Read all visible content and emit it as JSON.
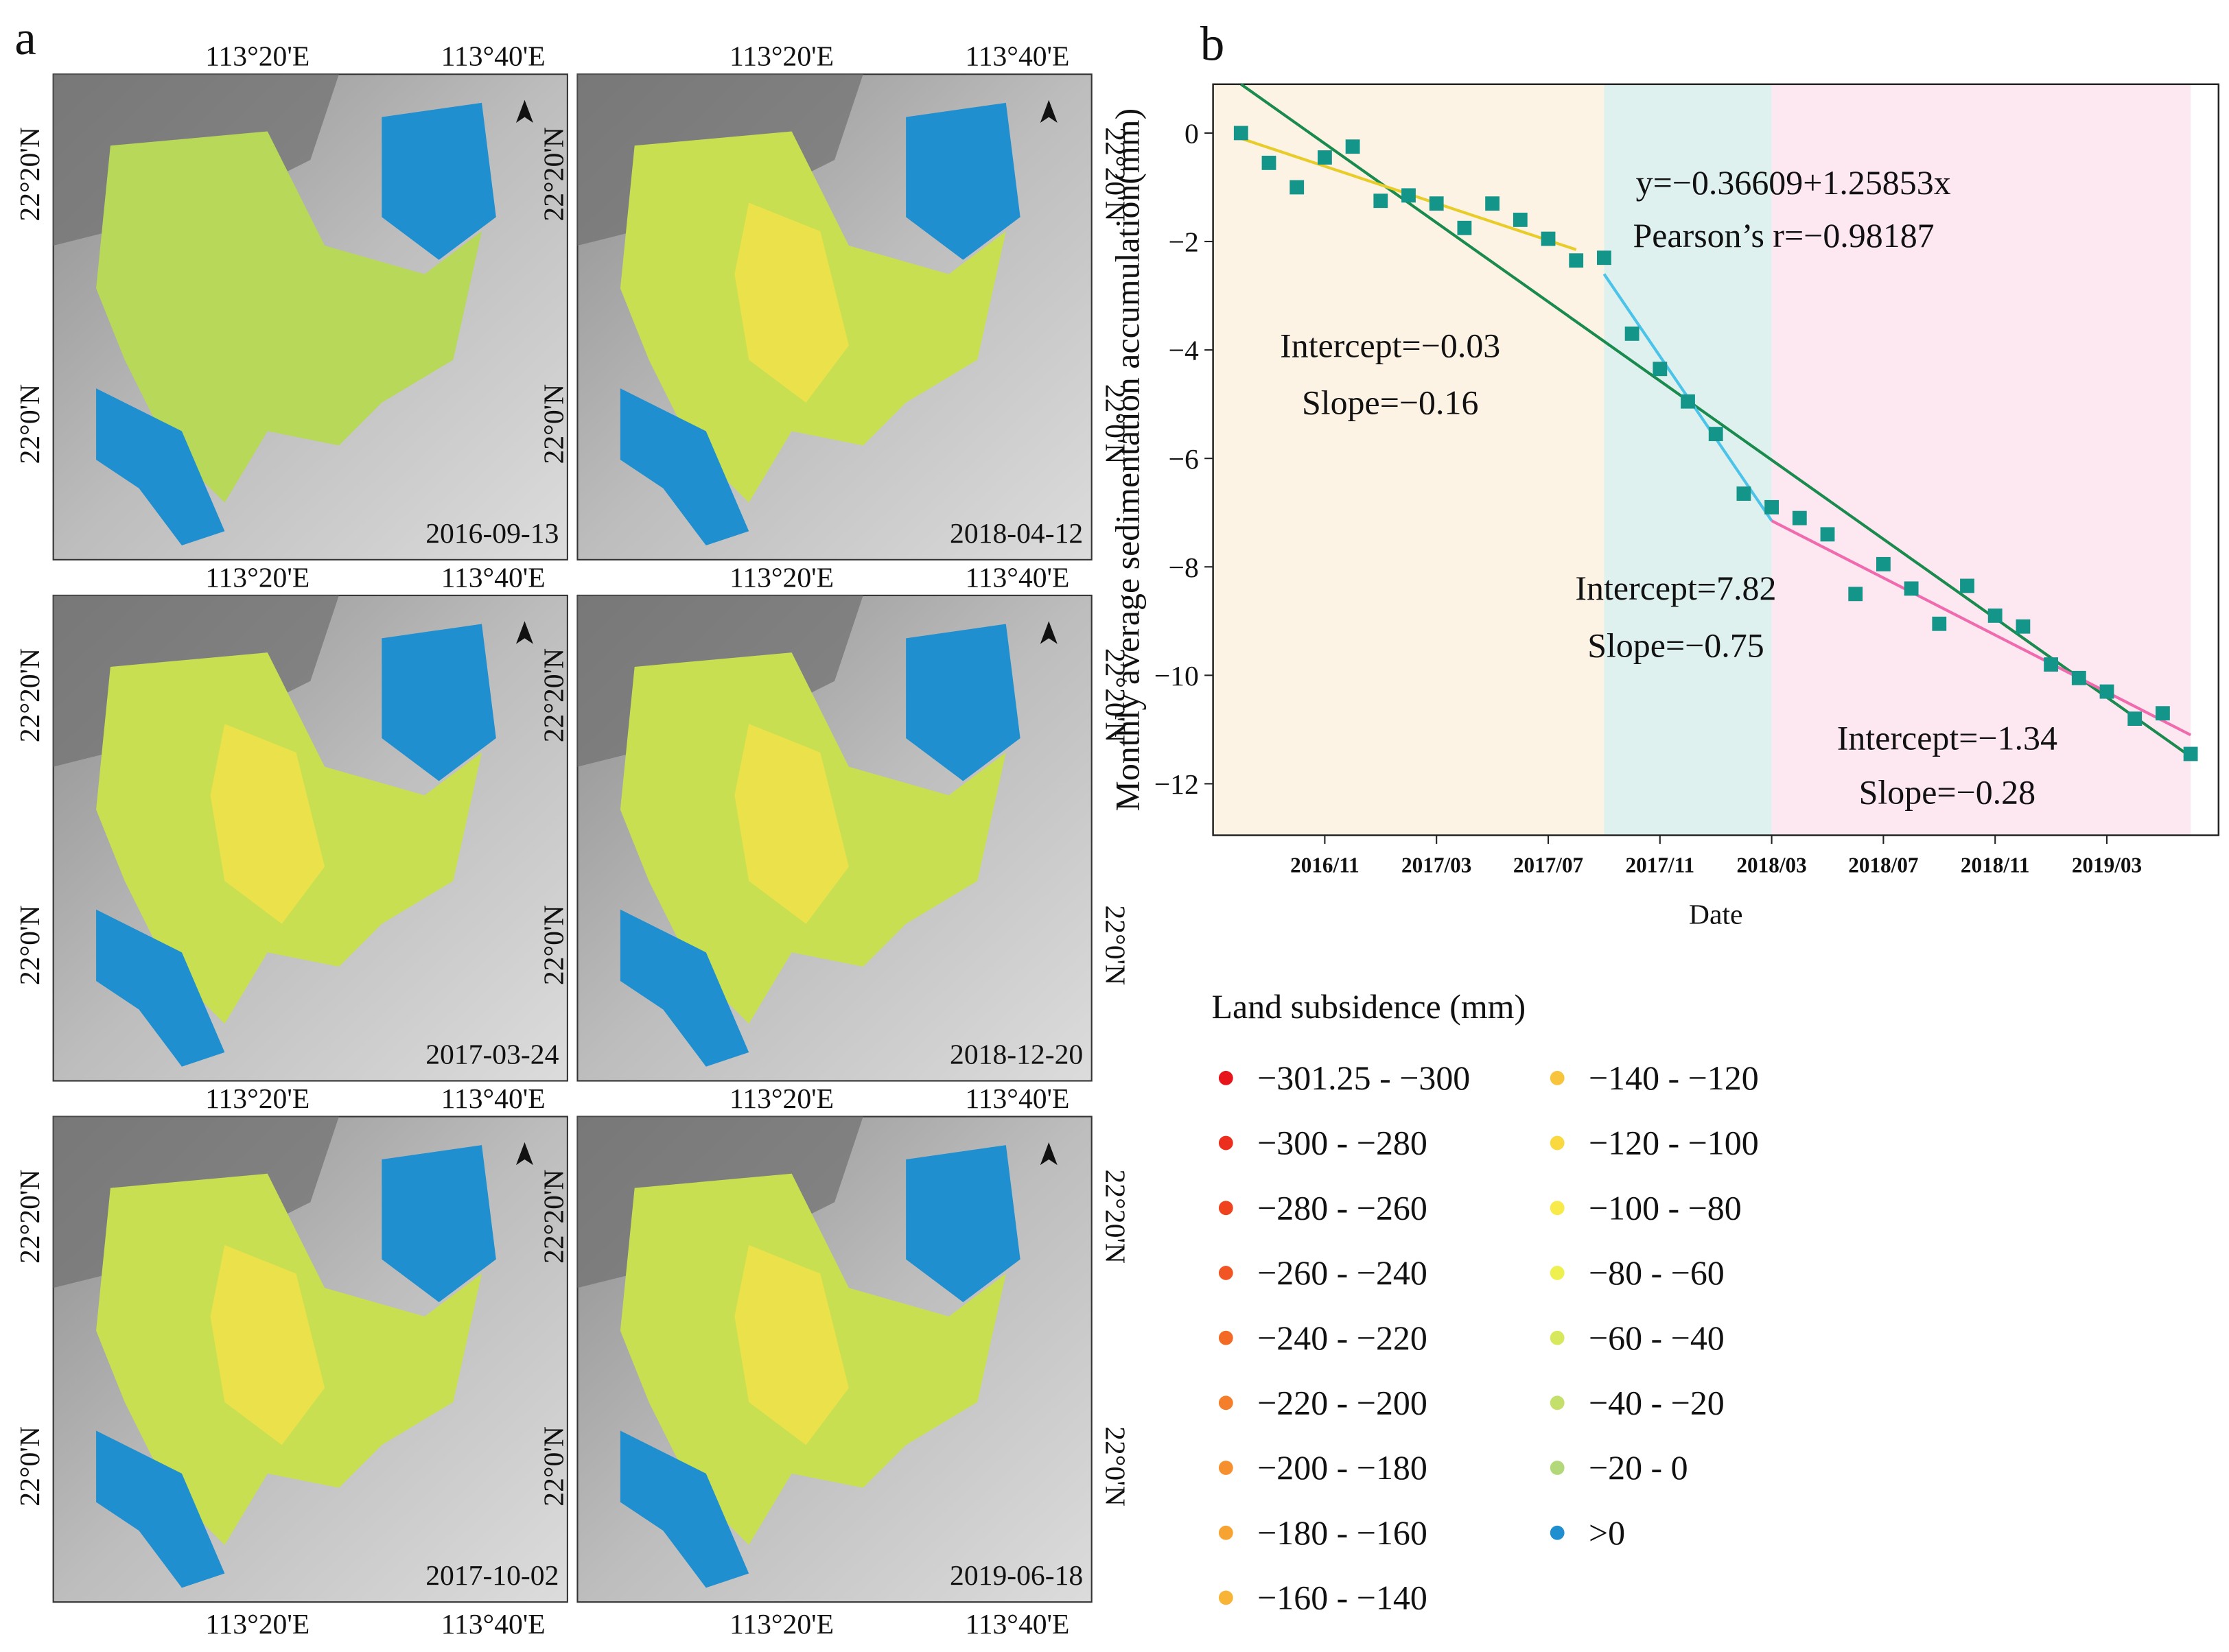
{
  "panel_labels": [
    "a",
    "b"
  ],
  "maps": {
    "lon_labels": [
      "113°20'E",
      "113°40'E"
    ],
    "lat_labels": [
      "22°20'N",
      "22°0'N"
    ],
    "panels": [
      {
        "date": "2016-09-13"
      },
      {
        "date": "2018-04-12"
      },
      {
        "date": "2017-03-24"
      },
      {
        "date": "2018-12-20"
      },
      {
        "date": "2017-10-02"
      },
      {
        "date": "2019-06-18"
      }
    ]
  },
  "chart_data": {
    "type": "scatter",
    "x_label": "Date",
    "y_label": "Monthly average sedimentation accumulation(mm)",
    "x": [
      "2016/08",
      "2016/09",
      "2016/10",
      "2016/11",
      "2016/12",
      "2017/01",
      "2017/02",
      "2017/03",
      "2017/04",
      "2017/05",
      "2017/06",
      "2017/07",
      "2017/08",
      "2017/09",
      "2017/10",
      "2017/11",
      "2017/12",
      "2018/01",
      "2018/02",
      "2018/03",
      "2018/04",
      "2018/05",
      "2018/06",
      "2018/07",
      "2018/08",
      "2018/09",
      "2018/10",
      "2018/11",
      "2018/12",
      "2019/01",
      "2019/02",
      "2019/03",
      "2019/04",
      "2019/05",
      "2019/06"
    ],
    "series": [
      {
        "color": "#14958a",
        "values": [
          0,
          -0.55,
          -1.0,
          -0.45,
          -0.25,
          -1.25,
          -1.15,
          -1.3,
          -1.75,
          -1.3,
          -1.6,
          -1.95,
          -2.35,
          -2.3,
          -3.7,
          -4.35,
          -4.95,
          -5.55,
          -6.65,
          -6.9,
          -7.1,
          -7.4,
          -8.5,
          -7.95,
          -8.4,
          -9.05,
          -8.35,
          -8.9,
          -9.1,
          -9.8,
          -10.05,
          -10.3,
          -10.8,
          -10.7,
          -11.45
        ]
      }
    ],
    "xlim": [
      "2016/07",
      "2019/07"
    ],
    "xticks": [
      "2016/11",
      "2017/03",
      "2017/07",
      "2017/11",
      "2018/03",
      "2018/07",
      "2018/11",
      "2019/03"
    ],
    "ylim": [
      -12.95,
      0.9
    ],
    "yticks": [
      0,
      {
        "value": -2,
        "label": "−2"
      },
      {
        "value": -4,
        "label": "−4"
      },
      {
        "value": -6,
        "label": "−6"
      },
      {
        "value": -8,
        "label": "−8"
      },
      {
        "value": -10,
        "label": "−10"
      },
      {
        "value": -12,
        "label": "−12"
      }
    ],
    "regions": [
      {
        "start": "2016/07",
        "end": "2017/09",
        "color": "#fdf3e4"
      },
      {
        "start": "2017/09",
        "end": "2018/03",
        "color": "#dff1ef"
      },
      {
        "start": "2018/03",
        "end": "2019/06",
        "color": "#fde7f1"
      }
    ],
    "fits": [
      {
        "color": "#1a8a4e",
        "x": [
          "2016/08",
          "2019/06"
        ],
        "y": [
          0.9,
          -11.5
        ]
      },
      {
        "color": "#e8cc2a",
        "x": [
          "2016/08",
          "2017/08"
        ],
        "y": [
          -0.1,
          -2.15
        ]
      },
      {
        "color": "#4cc3e8",
        "x": [
          "2017/09",
          "2018/03"
        ],
        "y": [
          -2.6,
          -7.15
        ]
      },
      {
        "color": "#f06aae",
        "x": [
          "2018/03",
          "2019/06"
        ],
        "y": [
          -7.15,
          -11.1
        ]
      }
    ],
    "annotations": [
      "y=−0.36609+1.25853x",
      "Pearson’s r=−0.98187",
      "Intercept=−0.03",
      "Slope=−0.16",
      "Intercept=7.82",
      "Slope=−0.75",
      "Intercept=−1.34",
      "Slope=−0.28"
    ]
  },
  "legend": {
    "title": "Land subsidence (mm)",
    "items": [
      {
        "label": "−301.25 - −300",
        "color": "#e8141c"
      },
      {
        "label": "−300 - −280",
        "color": "#ec2e1e"
      },
      {
        "label": "−280 - −260",
        "color": "#ef4320"
      },
      {
        "label": "−260 - −240",
        "color": "#f15524"
      },
      {
        "label": "−240 - −220",
        "color": "#f36a26"
      },
      {
        "label": "−220 - −200",
        "color": "#f47e2a"
      },
      {
        "label": "−200 - −180",
        "color": "#f6902e"
      },
      {
        "label": "−180 - −160",
        "color": "#f7a332"
      },
      {
        "label": "−160 - −140",
        "color": "#f8b436"
      },
      {
        "label": "−140 - −120",
        "color": "#f8c43c"
      },
      {
        "label": "−120 - −100",
        "color": "#f9d840"
      },
      {
        "label": "−100 - −80",
        "color": "#f8ea48"
      },
      {
        "label": "−80 - −60",
        "color": "#eef050"
      },
      {
        "label": "−60 - −40",
        "color": "#d8e85c"
      },
      {
        "label": "−40 - −20",
        "color": "#c4e06a"
      },
      {
        "label": "−20 - 0",
        "color": "#b2d87a"
      },
      {
        "label": ">0",
        "color": "#1f8fcf"
      }
    ]
  }
}
